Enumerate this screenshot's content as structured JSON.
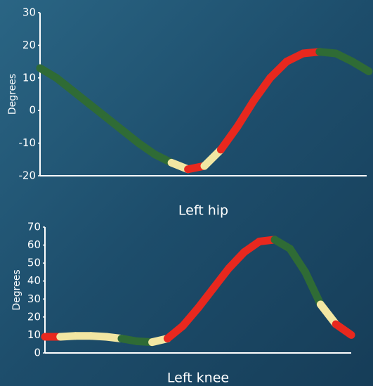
{
  "chart_data": [
    {
      "type": "line",
      "title": "Left hip",
      "y_label": "Degrees",
      "values": [
        13,
        10,
        6,
        2,
        -2,
        -6,
        -10,
        -13.5,
        -16,
        -18,
        -17,
        -12,
        -5,
        3,
        10,
        15,
        17.5,
        18,
        17.5,
        15,
        12
      ],
      "segment_colors": [
        "#2f6b35",
        "#2f6b35",
        "#2f6b35",
        "#2f6b35",
        "#2f6b35",
        "#2f6b35",
        "#2f6b35",
        "#2f6b35",
        "#f2e6a2",
        "#e8281e",
        "#f2e6a2",
        "#e8281e",
        "#e8281e",
        "#e8281e",
        "#e8281e",
        "#e8281e",
        "#e8281e",
        "#2f6b35",
        "#2f6b35",
        "#2f6b35"
      ],
      "ylim": [
        -20,
        30
      ],
      "yticks": [
        -20,
        -10,
        0,
        10,
        20,
        30
      ]
    },
    {
      "type": "line",
      "title": "Left knee",
      "y_label": "Degrees",
      "values": [
        9,
        9,
        9.5,
        9.5,
        9,
        8,
        6.5,
        6,
        8,
        15,
        25,
        36,
        47,
        56,
        62,
        63,
        58,
        45,
        27,
        16,
        10
      ],
      "segment_colors": [
        "#e8281e",
        "#f2e6a2",
        "#f2e6a2",
        "#f2e6a2",
        "#f2e6a2",
        "#2f6b35",
        "#2f6b35",
        "#f2e6a2",
        "#e8281e",
        "#e8281e",
        "#e8281e",
        "#e8281e",
        "#e8281e",
        "#e8281e",
        "#e8281e",
        "#2f6b35",
        "#2f6b35",
        "#2f6b35",
        "#f2e6a2",
        "#e8281e"
      ],
      "ylim": [
        0,
        70
      ],
      "yticks": [
        0,
        10,
        20,
        30,
        40,
        50,
        60,
        70
      ]
    }
  ]
}
